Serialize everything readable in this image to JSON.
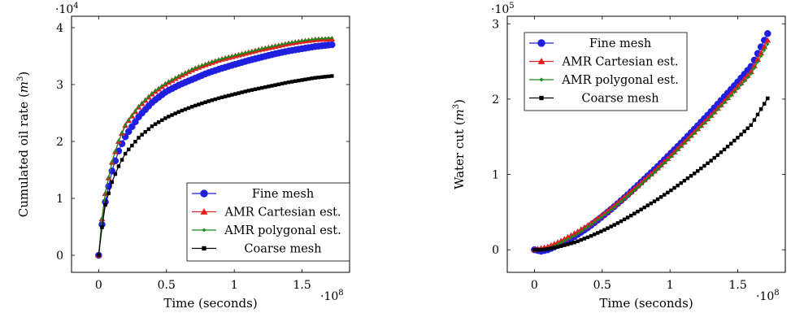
{
  "chart_data": [
    {
      "type": "line",
      "xlabel": "Time (seconds)",
      "ylabel": "Cumulated oil rate (m³)",
      "ylabel_text": "Cumulated oil rate (",
      "ylabel_unit": "m",
      "ylabel_exp": "3",
      "ylabel_close": ")",
      "x_multiplier": "·10",
      "x_multiplier_exp": "8",
      "y_multiplier": "·10",
      "y_multiplier_exp": "4",
      "xlim": [
        -0.2,
        1.85
      ],
      "ylim": [
        -0.3,
        4.2
      ],
      "xticks": [
        0,
        0.5,
        1,
        1.5
      ],
      "xtick_labels": [
        "0",
        "0.5",
        "1",
        "1.5"
      ],
      "yticks": [
        0,
        1,
        2,
        3,
        4
      ],
      "ytick_labels": [
        "0",
        "1",
        "2",
        "3",
        "4"
      ],
      "legend_position": "bottom-right",
      "x": [
        0,
        0.025,
        0.05,
        0.1,
        0.15,
        0.2,
        0.3,
        0.4,
        0.5,
        0.6,
        0.7,
        0.8,
        0.9,
        1.0,
        1.1,
        1.2,
        1.3,
        1.4,
        1.5,
        1.6,
        1.72
      ],
      "series": [
        {
          "name": "Fine mesh",
          "marker": "circle",
          "color": "#1f1fe0",
          "values": [
            0,
            0.55,
            0.95,
            1.5,
            1.85,
            2.1,
            2.45,
            2.7,
            2.88,
            3.0,
            3.1,
            3.2,
            3.28,
            3.35,
            3.42,
            3.48,
            3.54,
            3.59,
            3.63,
            3.67,
            3.7
          ]
        },
        {
          "name": "AMR Cartesian est.",
          "marker": "triangle",
          "color": "#e02020",
          "values": [
            0,
            0.65,
            1.1,
            1.65,
            2.02,
            2.3,
            2.62,
            2.85,
            3.02,
            3.15,
            3.27,
            3.36,
            3.44,
            3.5,
            3.56,
            3.62,
            3.67,
            3.72,
            3.76,
            3.79,
            3.8
          ]
        },
        {
          "name": "AMR polygonal est.",
          "marker": "diamond",
          "color": "#1a8a1a",
          "values": [
            0,
            0.66,
            1.11,
            1.66,
            2.03,
            2.31,
            2.63,
            2.86,
            3.03,
            3.16,
            3.28,
            3.37,
            3.45,
            3.51,
            3.57,
            3.63,
            3.68,
            3.73,
            3.77,
            3.8,
            3.82
          ]
        },
        {
          "name": "Coarse mesh",
          "marker": "square",
          "color": "#000000",
          "values": [
            0,
            0.5,
            0.9,
            1.3,
            1.58,
            1.8,
            2.08,
            2.28,
            2.42,
            2.53,
            2.62,
            2.7,
            2.77,
            2.83,
            2.89,
            2.94,
            2.99,
            3.04,
            3.08,
            3.12,
            3.15
          ]
        }
      ]
    },
    {
      "type": "line",
      "xlabel": "Time (seconds)",
      "ylabel": "Water cut (m³)",
      "ylabel_text": "Water cut (",
      "ylabel_unit": "m",
      "ylabel_exp": "3",
      "ylabel_close": ")",
      "x_multiplier": "·10",
      "x_multiplier_exp": "8",
      "y_multiplier": "·10",
      "y_multiplier_exp": "5",
      "xlim": [
        -0.2,
        1.85
      ],
      "ylim": [
        -0.3,
        3.1
      ],
      "xticks": [
        0,
        0.5,
        1,
        1.5
      ],
      "xtick_labels": [
        "0",
        "0.5",
        "1",
        "1.5"
      ],
      "yticks": [
        0,
        1,
        2,
        3
      ],
      "ytick_labels": [
        "0",
        "1",
        "2",
        "3"
      ],
      "legend_position": "top-left",
      "x": [
        0,
        0.05,
        0.1,
        0.15,
        0.2,
        0.3,
        0.4,
        0.5,
        0.6,
        0.7,
        0.8,
        0.9,
        1.0,
        1.1,
        1.2,
        1.3,
        1.4,
        1.5,
        1.6,
        1.72
      ],
      "series": [
        {
          "name": "Fine mesh",
          "marker": "circle",
          "color": "#1f1fe0",
          "values": [
            0,
            -0.02,
            0.0,
            0.04,
            0.08,
            0.18,
            0.3,
            0.44,
            0.59,
            0.75,
            0.92,
            1.09,
            1.27,
            1.45,
            1.64,
            1.83,
            2.03,
            2.23,
            2.44,
            2.87
          ]
        },
        {
          "name": "AMR Cartesian est.",
          "marker": "triangle",
          "color": "#e02020",
          "values": [
            0,
            0.02,
            0.04,
            0.08,
            0.12,
            0.22,
            0.33,
            0.46,
            0.6,
            0.75,
            0.91,
            1.07,
            1.24,
            1.42,
            1.6,
            1.78,
            1.97,
            2.17,
            2.37,
            2.78
          ]
        },
        {
          "name": "AMR polygonal est.",
          "marker": "diamond",
          "color": "#1a8a1a",
          "values": [
            0,
            0.0,
            0.02,
            0.05,
            0.1,
            0.19,
            0.31,
            0.44,
            0.58,
            0.73,
            0.89,
            1.05,
            1.22,
            1.4,
            1.58,
            1.76,
            1.95,
            2.14,
            2.34,
            2.73
          ]
        },
        {
          "name": "Coarse mesh",
          "marker": "square",
          "color": "#000000",
          "values": [
            0,
            0.0,
            0.01,
            0.03,
            0.05,
            0.1,
            0.17,
            0.25,
            0.34,
            0.44,
            0.55,
            0.66,
            0.78,
            0.91,
            1.04,
            1.18,
            1.33,
            1.49,
            1.66,
            2.01
          ]
        }
      ]
    }
  ]
}
